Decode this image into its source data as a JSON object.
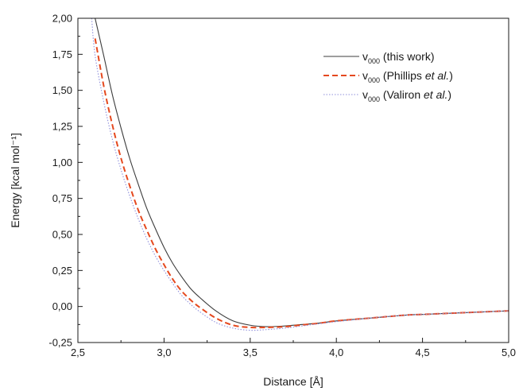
{
  "chart_data": {
    "type": "line",
    "xlabel": "Distance [Å]",
    "ylabel": "Energy [kcal mol⁻¹]",
    "xlim": [
      2.5,
      5.0
    ],
    "ylim": [
      -0.25,
      2.0
    ],
    "x_ticks": [
      {
        "value": 2.5,
        "label": "2,5"
      },
      {
        "value": 3.0,
        "label": "3,0"
      },
      {
        "value": 3.5,
        "label": "3,5"
      },
      {
        "value": 4.0,
        "label": "4,0"
      },
      {
        "value": 4.5,
        "label": "4,5"
      },
      {
        "value": 5.0,
        "label": "5,0"
      }
    ],
    "y_ticks": [
      {
        "value": -0.25,
        "label": "-0,25"
      },
      {
        "value": 0.0,
        "label": "0,00"
      },
      {
        "value": 0.25,
        "label": "0,25"
      },
      {
        "value": 0.5,
        "label": "0,50"
      },
      {
        "value": 0.75,
        "label": "0,75"
      },
      {
        "value": 1.0,
        "label": "1,00"
      },
      {
        "value": 1.25,
        "label": "1,25"
      },
      {
        "value": 1.5,
        "label": "1,50"
      },
      {
        "value": 1.75,
        "label": "1,75"
      },
      {
        "value": 2.0,
        "label": "2,00"
      }
    ],
    "grid": false,
    "legend_position": "top-right",
    "series": [
      {
        "id": "this-work",
        "label": "v000 (this work)",
        "style": "solid",
        "color": "#3c3c3c",
        "x": [
          2.6,
          2.65,
          2.7,
          2.75,
          2.8,
          2.85,
          2.9,
          2.95,
          3.0,
          3.05,
          3.1,
          3.15,
          3.2,
          3.3,
          3.4,
          3.5,
          3.6,
          3.7,
          3.8,
          3.9,
          4.0,
          4.2,
          4.4,
          4.5,
          4.6,
          4.8,
          5.0
        ],
        "y": [
          2.0,
          1.74,
          1.47,
          1.24,
          1.03,
          0.85,
          0.68,
          0.54,
          0.41,
          0.3,
          0.21,
          0.13,
          0.07,
          -0.03,
          -0.1,
          -0.13,
          -0.14,
          -0.135,
          -0.125,
          -0.115,
          -0.1,
          -0.08,
          -0.06,
          -0.055,
          -0.05,
          -0.04,
          -0.03
        ]
      },
      {
        "id": "phillips",
        "label": "v000 (Phillips et al.)",
        "style": "dashed",
        "color": "#e5481e",
        "x": [
          2.6,
          2.65,
          2.7,
          2.75,
          2.8,
          2.85,
          2.9,
          2.95,
          3.0,
          3.05,
          3.1,
          3.15,
          3.2,
          3.3,
          3.4,
          3.5,
          3.6,
          3.7,
          3.8,
          3.9,
          4.0,
          4.2,
          4.4,
          4.5,
          4.6,
          4.8,
          5.0
        ],
        "y": [
          1.86,
          1.53,
          1.26,
          1.03,
          0.84,
          0.67,
          0.53,
          0.4,
          0.29,
          0.19,
          0.11,
          0.05,
          0.0,
          -0.08,
          -0.13,
          -0.145,
          -0.145,
          -0.14,
          -0.128,
          -0.116,
          -0.1,
          -0.08,
          -0.06,
          -0.055,
          -0.05,
          -0.04,
          -0.03
        ]
      },
      {
        "id": "valiron",
        "label": "v000 (Valiron et al.)",
        "style": "dotted",
        "color": "#8f8fdb",
        "x": [
          2.58,
          2.6,
          2.65,
          2.7,
          2.75,
          2.8,
          2.85,
          2.9,
          2.95,
          3.0,
          3.05,
          3.1,
          3.15,
          3.2,
          3.3,
          3.4,
          3.5,
          3.6,
          3.7,
          3.8,
          3.9,
          4.0,
          4.2,
          4.4,
          4.5,
          4.6,
          4.8,
          5.0
        ],
        "y": [
          2.0,
          1.74,
          1.42,
          1.16,
          0.95,
          0.77,
          0.61,
          0.47,
          0.35,
          0.25,
          0.16,
          0.08,
          0.02,
          -0.03,
          -0.11,
          -0.15,
          -0.165,
          -0.16,
          -0.15,
          -0.135,
          -0.12,
          -0.105,
          -0.08,
          -0.06,
          -0.055,
          -0.05,
          -0.04,
          -0.03
        ]
      }
    ]
  },
  "legend": {
    "items": [
      {
        "prefix": "v",
        "subscript": "000",
        "text": " (this work)",
        "italic": "",
        "suffix": ""
      },
      {
        "prefix": "v",
        "subscript": "000",
        "text": " (Phillips ",
        "italic": "et al.",
        "suffix": ")"
      },
      {
        "prefix": "v",
        "subscript": "000",
        "text": " (Valiron ",
        "italic": "et al.",
        "suffix": ")"
      }
    ]
  }
}
